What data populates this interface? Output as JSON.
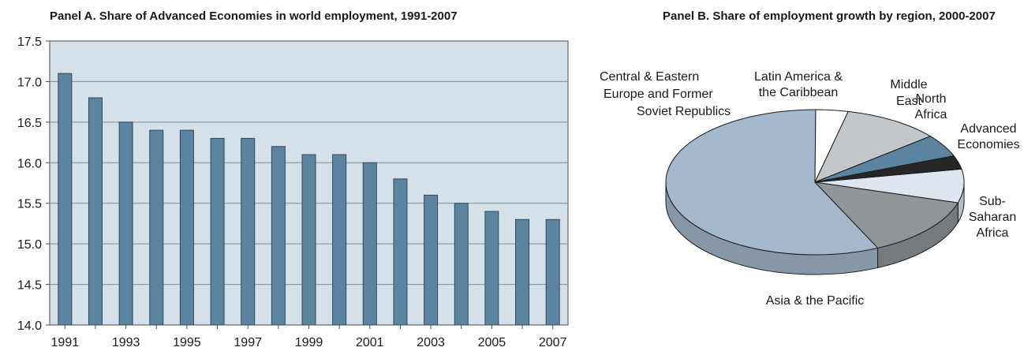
{
  "panel_a": {
    "title": "Panel A.  Share of Advanced Economies in world employment, 1991-2007"
  },
  "panel_b": {
    "title": "Panel B. Share of employment growth by region, 2000-2007"
  },
  "chart_data": [
    {
      "type": "bar",
      "title": "Panel A.  Share of Advanced Economies in world employment, 1991-2007",
      "xlabel": "",
      "ylabel": "",
      "categories": [
        "1991",
        "1992",
        "1993",
        "1994",
        "1995",
        "1996",
        "1997",
        "1998",
        "1999",
        "2000",
        "2001",
        "2002",
        "2003",
        "2004",
        "2005",
        "2006",
        "2007"
      ],
      "values": [
        17.1,
        16.8,
        16.5,
        16.4,
        16.4,
        16.3,
        16.3,
        16.2,
        16.1,
        16.1,
        16.0,
        15.8,
        15.6,
        15.5,
        15.4,
        15.3,
        15.3
      ],
      "x_tick_labels": [
        "1991",
        "1993",
        "1995",
        "1997",
        "1999",
        "2001",
        "2003",
        "2005",
        "2007"
      ],
      "y_ticks": [
        14.0,
        14.5,
        15.0,
        15.5,
        16.0,
        16.5,
        17.0,
        17.5
      ],
      "y_tick_labels": [
        "14.0",
        "14.5",
        "15.0",
        "15.5",
        "16.0",
        "16.5",
        "17.0",
        "17.5"
      ],
      "ylim": [
        14.0,
        17.5
      ],
      "grid": true,
      "colors": {
        "bar": "#5b84a1",
        "bar_edge": "#2e4a5e",
        "plot_bg": "#d6e0e8",
        "grid": "#7f8c96"
      }
    },
    {
      "type": "pie",
      "title": "Panel B. Share of employment growth by region, 2000-2007",
      "slices": [
        {
          "label": "Advanced Economies",
          "lines": [
            "Advanced",
            "Economies"
          ],
          "value": 7.5,
          "color": "#dde6ee"
        },
        {
          "label": "Sub-Saharan Africa",
          "lines": [
            "Sub-",
            "Saharan",
            "Africa"
          ],
          "value": 13.5,
          "color": "#909598"
        },
        {
          "label": "Asia & the Pacific",
          "lines": [
            "Asia & the Pacific"
          ],
          "value": 57.0,
          "color": "#a4b9cd"
        },
        {
          "label": "Central & Eastern Europe and Former Soviet Republics",
          "lines": [
            "Central & Eastern",
            "Europe and Former",
            "Soviet Republics"
          ],
          "value": 3.5,
          "color": "#ffffff"
        },
        {
          "label": "Latin America & the Caribbean",
          "lines": [
            "Latin America &",
            "the Caribbean"
          ],
          "value": 10.5,
          "color": "#c4c7c9"
        },
        {
          "label": "Middle East",
          "lines": [
            "Middle",
            "East"
          ],
          "value": 5.0,
          "color": "#5b84a1"
        },
        {
          "label": "North Africa",
          "lines": [
            "North",
            "Africa"
          ],
          "value": 3.0,
          "color": "#262626"
        }
      ],
      "three_d": true
    }
  ]
}
